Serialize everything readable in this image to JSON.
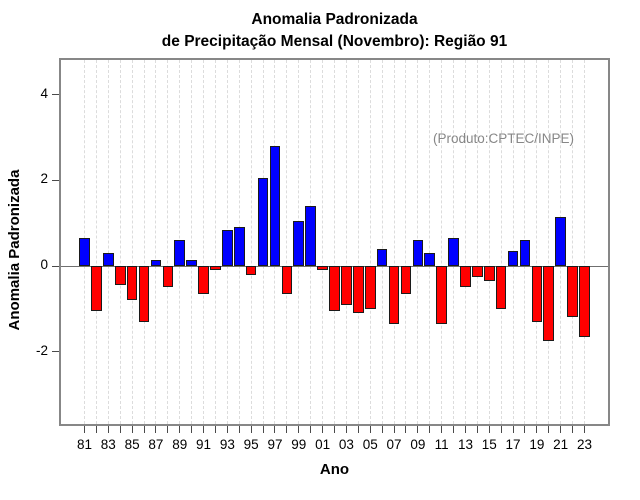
{
  "title": {
    "line1": "Anomalia Padronizada",
    "line2": "de Precipitação Mensal (Novembro): Região 91"
  },
  "annotation": "(Produto:CPTEC/INPE)",
  "axes": {
    "y_label": "Anomalia Padronizada",
    "x_label": "Ano",
    "y_ticks": [
      4,
      2,
      0,
      -2
    ],
    "x_tick_labels": [
      "81",
      "83",
      "85",
      "87",
      "89",
      "91",
      "93",
      "95",
      "97",
      "99",
      "01",
      "03",
      "05",
      "07",
      "09",
      "11",
      "13",
      "15",
      "17",
      "19",
      "21",
      "23"
    ]
  },
  "chart_data": {
    "type": "bar",
    "title": "Anomalia Padronizada de Precipitação Mensal (Novembro): Região 91",
    "xlabel": "Ano",
    "ylabel": "Anomalia Padronizada",
    "ylim": [
      -3.7,
      4.85
    ],
    "grid": "vertical-dashed",
    "zero_line": true,
    "positive_color": "#0000ff",
    "negative_color": "#ff0000",
    "x": [
      1981,
      1982,
      1983,
      1984,
      1985,
      1986,
      1987,
      1988,
      1989,
      1990,
      1991,
      1992,
      1993,
      1994,
      1995,
      1996,
      1997,
      1998,
      1999,
      2000,
      2001,
      2002,
      2003,
      2004,
      2005,
      2006,
      2007,
      2008,
      2009,
      2010,
      2011,
      2012,
      2013,
      2014,
      2015,
      2016,
      2017,
      2018,
      2019,
      2020,
      2021,
      2022,
      2023
    ],
    "values": [
      0.65,
      -1.05,
      0.3,
      -0.45,
      -0.8,
      -1.3,
      0.15,
      -0.5,
      0.6,
      0.15,
      -0.65,
      -0.1,
      0.85,
      0.9,
      -0.2,
      2.05,
      2.8,
      -0.65,
      1.05,
      1.4,
      -0.1,
      -1.05,
      -0.9,
      -1.1,
      -1.0,
      0.4,
      -1.35,
      -0.65,
      0.6,
      0.3,
      -1.35,
      0.65,
      -0.5,
      -0.25,
      -0.35,
      -1.0,
      0.35,
      0.6,
      -1.3,
      -1.75,
      1.15,
      -1.2,
      -1.65
    ]
  }
}
